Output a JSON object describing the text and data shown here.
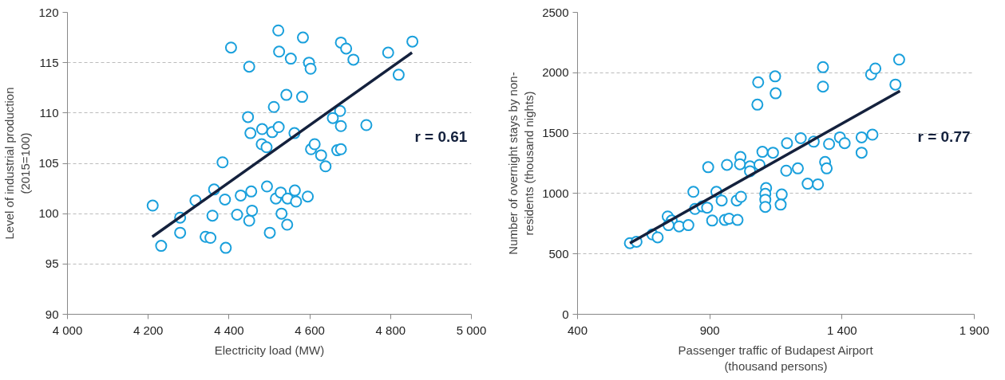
{
  "chart_data": [
    {
      "type": "scatter",
      "xlabel": "Electricity load (MW)",
      "ylabel": "Level of industrial production\n(2015=100)",
      "annotations": [
        "r = 0.61"
      ],
      "xlim": [
        4000,
        5000
      ],
      "xticks": [
        {
          "value": 4000,
          "label": "4 000"
        },
        {
          "value": 4200,
          "label": "4 200"
        },
        {
          "value": 4400,
          "label": "4 400"
        },
        {
          "value": 4600,
          "label": "4 600"
        },
        {
          "value": 4800,
          "label": "4 800"
        },
        {
          "value": 5000,
          "label": "5 000"
        }
      ],
      "ylim": [
        90,
        120
      ],
      "yticks": [
        90,
        95,
        100,
        105,
        110,
        115,
        120
      ],
      "grid": "y",
      "series": [
        {
          "marker": "circle",
          "color": "#1aa0dc",
          "x": [
            4211,
            4232,
            4279,
            4279,
            4317,
            4342,
            4354,
            4363,
            4359,
            4390,
            4392,
            4384,
            4405,
            4420,
            4429,
            4450,
            4450,
            4455,
            4457,
            4447,
            4453,
            4482,
            4481,
            4493,
            4507,
            4523,
            4511,
            4494,
            4501,
            4516,
            4528,
            4530,
            4545,
            4544,
            4563,
            4566,
            4595,
            4562,
            4542,
            4581,
            4522,
            4524,
            4553,
            4583,
            4598,
            4602,
            4603,
            4612,
            4628,
            4639,
            4677,
            4690,
            4708,
            4794,
            4854,
            4820,
            4675,
            4657,
            4677,
            4740,
            4668,
            4677
          ],
          "values": [
            100.8,
            96.8,
            99.6,
            98.1,
            101.3,
            97.7,
            97.6,
            102.4,
            99.8,
            101.4,
            96.6,
            105.1,
            116.5,
            99.9,
            101.8,
            114.6,
            99.3,
            102.2,
            100.3,
            109.6,
            108.0,
            108.4,
            106.9,
            106.6,
            108.1,
            108.6,
            110.6,
            102.7,
            98.1,
            101.5,
            102.1,
            100.0,
            101.5,
            98.9,
            102.3,
            101.2,
            101.7,
            108.0,
            111.8,
            111.6,
            118.2,
            116.1,
            115.4,
            117.5,
            115.0,
            114.4,
            106.4,
            106.9,
            105.8,
            104.7,
            117.0,
            116.4,
            115.3,
            116.0,
            117.1,
            113.8,
            110.2,
            109.5,
            108.7,
            108.8,
            106.3,
            106.4
          ]
        },
        {
          "type": "line",
          "color": "#14213d",
          "x": [
            4210,
            4853
          ],
          "values": [
            97.7,
            116.0
          ]
        }
      ]
    },
    {
      "type": "scatter",
      "xlabel": "Passenger traffic of Budapest Airport\n(thousand persons)",
      "ylabel": "Number of overnight stays by non-\nresidents (thousand nights)",
      "annotations": [
        "r = 0.77"
      ],
      "xlim": [
        400,
        1900
      ],
      "xticks": [
        400,
        900,
        {
          "value": 1400,
          "label": "1 400"
        },
        {
          "value": 1900,
          "label": "1 900"
        }
      ],
      "ylim": [
        0,
        2500
      ],
      "yticks": [
        0,
        500,
        1000,
        1500,
        2000,
        2500
      ],
      "grid": "y",
      "series": [
        {
          "marker": "circle",
          "color": "#1aa0dc",
          "x": [
            598,
            623,
            683,
            703,
            741,
            756,
            744,
            784,
            819,
            838,
            844,
            872,
            890,
            894,
            909,
            925,
            945,
            957,
            973,
            1005,
            1002,
            1018,
            965,
            1016,
            1014,
            1052,
            1052,
            1088,
            1099,
            1139,
            1192,
            1189,
            1113,
            1110,
            1110,
            1110,
            1172,
            1168,
            1083,
            1147,
            1149,
            1080,
            1244,
            1293,
            1351,
            1392,
            1410,
            1474,
            1515,
            1474,
            1328,
            1328,
            1510,
            1526,
            1616,
            1602,
            1233,
            1336,
            1342,
            1270,
            1309
          ],
          "values": [
            589,
            601,
            661,
            637,
            810,
            776,
            738,
            728,
            738,
            1014,
            872,
            893,
            883,
            1218,
            776,
            1014,
            942,
            781,
            792,
            781,
            942,
            973,
            1237,
            1302,
            1242,
            1225,
            1184,
            1237,
            1345,
            1338,
            1417,
            1189,
            1045,
            997,
            949,
            889,
            992,
            908,
            1921,
            1970,
            1830,
            1736,
            1458,
            1429,
            1410,
            1465,
            1417,
            1465,
            1487,
            1338,
            2046,
            1885,
            1986,
            2035,
            2109,
            1902,
            1208,
            1261,
            1208,
            1081,
            1076
          ]
        },
        {
          "type": "line",
          "color": "#14213d",
          "x": [
            598,
            1619
          ],
          "values": [
            589,
            1849
          ]
        }
      ]
    }
  ]
}
